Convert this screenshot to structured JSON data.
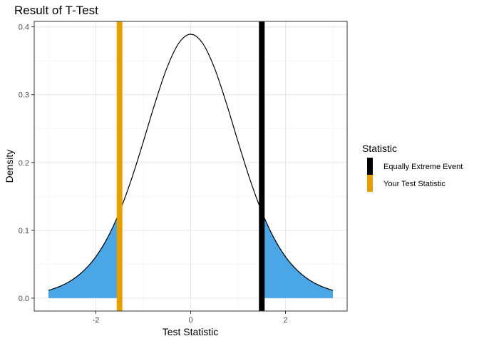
{
  "chart_data": {
    "type": "area",
    "title": "Result of T-Test",
    "xlabel": "Test Statistic",
    "ylabel": "Density",
    "xlim": [
      -3.3,
      3.3
    ],
    "ylim": [
      -0.019,
      0.408
    ],
    "x_ticks": [
      -2,
      0,
      2
    ],
    "x_tick_labels": [
      "-2",
      "0",
      "2"
    ],
    "y_ticks": [
      0,
      0.1,
      0.2,
      0.3,
      0.4
    ],
    "y_tick_labels": [
      "0.0",
      "0.1",
      "0.2",
      "0.3",
      "0.4"
    ],
    "grid": true,
    "curve": {
      "x": [
        -3,
        -2.75,
        -2.5,
        -2.25,
        -2,
        -1.75,
        -1.5,
        -1.25,
        -1,
        -0.75,
        -0.5,
        -0.25,
        0,
        0.25,
        0.5,
        0.75,
        1,
        1.25,
        1.5,
        1.75,
        2,
        2.25,
        2.5,
        2.75,
        3
      ],
      "y": [
        0.0114,
        0.0176,
        0.0269,
        0.0409,
        0.0611,
        0.0895,
        0.1274,
        0.1751,
        0.2304,
        0.288,
        0.3397,
        0.376,
        0.3891,
        0.376,
        0.3397,
        0.288,
        0.2304,
        0.1751,
        0.1274,
        0.0895,
        0.0611,
        0.0409,
        0.0269,
        0.0176,
        0.0114
      ]
    },
    "shaded_regions": [
      [
        -3,
        -1.5
      ],
      [
        1.5,
        3
      ]
    ],
    "shade_color": "#4AA6E4",
    "vlines": [
      {
        "name": "Equally Extreme Event",
        "x": 1.5,
        "color": "#000000"
      },
      {
        "name": "Your Test Statistic",
        "x": -1.5,
        "color": "#E69F00"
      }
    ],
    "legend": {
      "title": "Statistic",
      "placement": "right"
    }
  }
}
